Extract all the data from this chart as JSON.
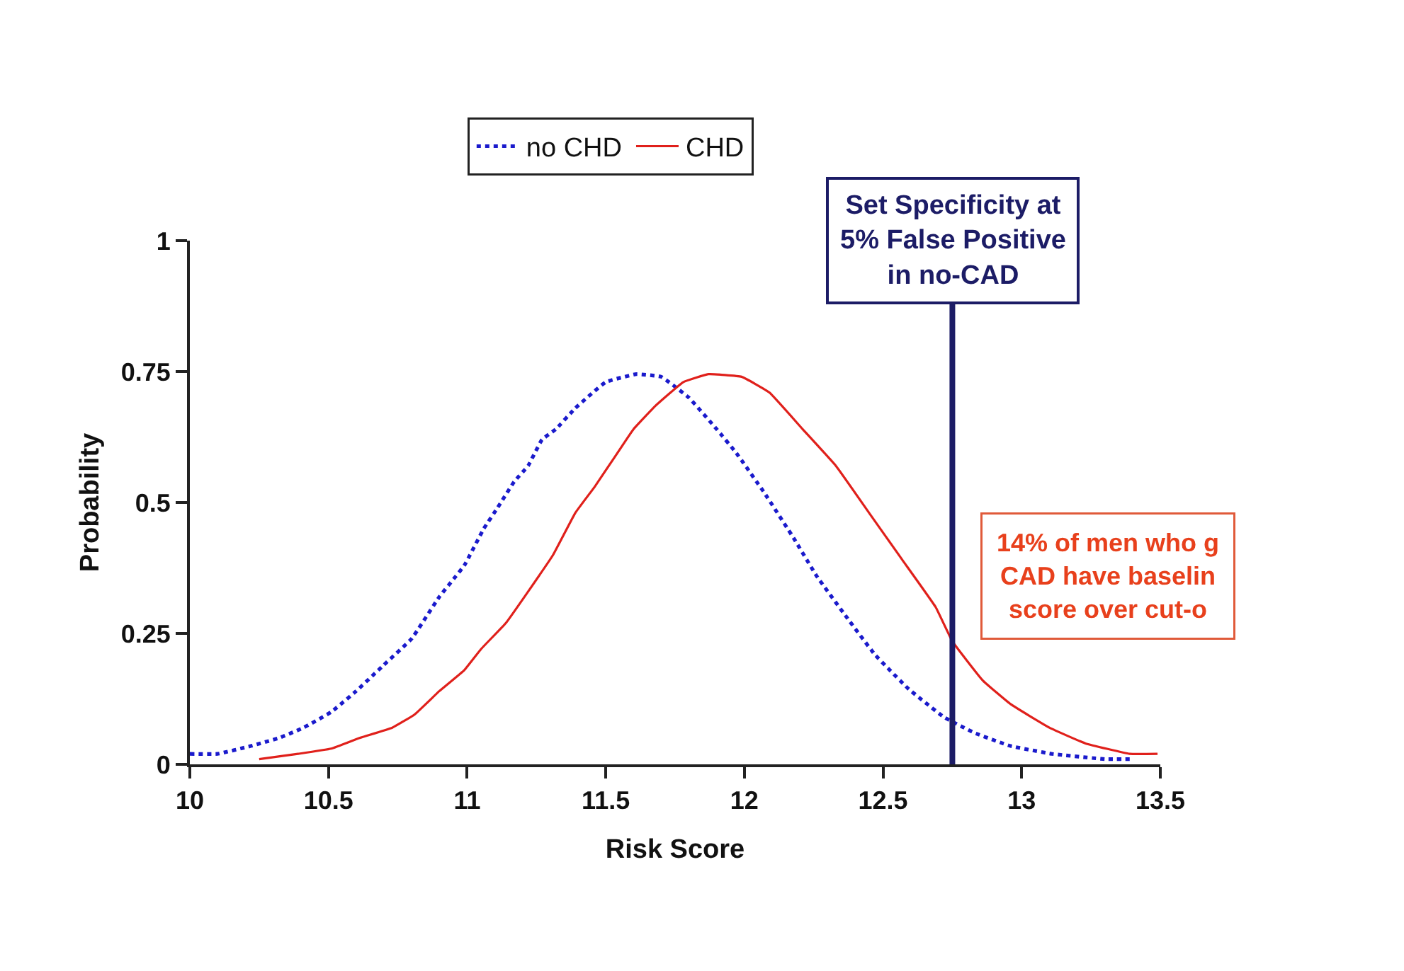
{
  "chart_data": {
    "type": "line",
    "xlabel": "Risk Score",
    "ylabel": "Probability",
    "xlim": [
      10,
      13.5
    ],
    "xticks": [
      10,
      10.5,
      11,
      11.5,
      12,
      12.5,
      13,
      13.5
    ],
    "ylim": [
      0,
      1
    ],
    "yticks": [
      0,
      0.25,
      0.5,
      0.75,
      1
    ],
    "legend": "top",
    "marker": "none",
    "series": [
      {
        "name": "no CHD",
        "color": "#1a1acc",
        "line_style": "dotted",
        "x": [
          10.0,
          10.1,
          10.22,
          10.32,
          10.41,
          10.51,
          10.6,
          10.7,
          10.8,
          10.9,
          10.99,
          11.06,
          11.11,
          11.17,
          11.22,
          11.27,
          11.32,
          11.39,
          11.5,
          11.61,
          11.7,
          11.8,
          11.9,
          11.97,
          12.07,
          12.18,
          12.26,
          12.37,
          12.47,
          12.59,
          12.72,
          12.83,
          12.96,
          13.11,
          13.3,
          13.4
        ],
        "values": [
          0.02,
          0.02,
          0.035,
          0.05,
          0.07,
          0.1,
          0.14,
          0.19,
          0.24,
          0.32,
          0.38,
          0.45,
          0.49,
          0.54,
          0.57,
          0.62,
          0.64,
          0.68,
          0.73,
          0.745,
          0.74,
          0.7,
          0.64,
          0.595,
          0.52,
          0.43,
          0.36,
          0.28,
          0.21,
          0.145,
          0.09,
          0.06,
          0.035,
          0.02,
          0.01,
          0.01
        ]
      },
      {
        "name": "CHD",
        "color": "#e0201b",
        "line_style": "solid",
        "x": [
          10.25,
          10.39,
          10.51,
          10.61,
          10.73,
          10.81,
          10.9,
          10.99,
          11.05,
          11.14,
          11.22,
          11.31,
          11.39,
          11.46,
          11.53,
          11.6,
          11.68,
          11.78,
          11.87,
          11.99,
          12.09,
          12.21,
          12.33,
          12.45,
          12.57,
          12.69,
          12.75,
          12.86,
          12.96,
          13.1,
          13.23,
          13.39,
          13.49
        ],
        "values": [
          0.01,
          0.02,
          0.03,
          0.05,
          0.07,
          0.095,
          0.14,
          0.18,
          0.22,
          0.27,
          0.33,
          0.4,
          0.48,
          0.53,
          0.585,
          0.64,
          0.685,
          0.73,
          0.745,
          0.74,
          0.71,
          0.64,
          0.57,
          0.48,
          0.39,
          0.3,
          0.235,
          0.16,
          0.115,
          0.07,
          0.04,
          0.02,
          0.02
        ]
      }
    ],
    "ref_lines": [
      {
        "axis": "x",
        "value": 12.75,
        "label": "Set Specificity at\n5% False Positive\nin no-CAD",
        "color": "#1c1c66",
        "line_style": "solid"
      }
    ],
    "annotations": [
      "14% of men who g\nCAD have baselin\nscore over cut-o"
    ]
  }
}
